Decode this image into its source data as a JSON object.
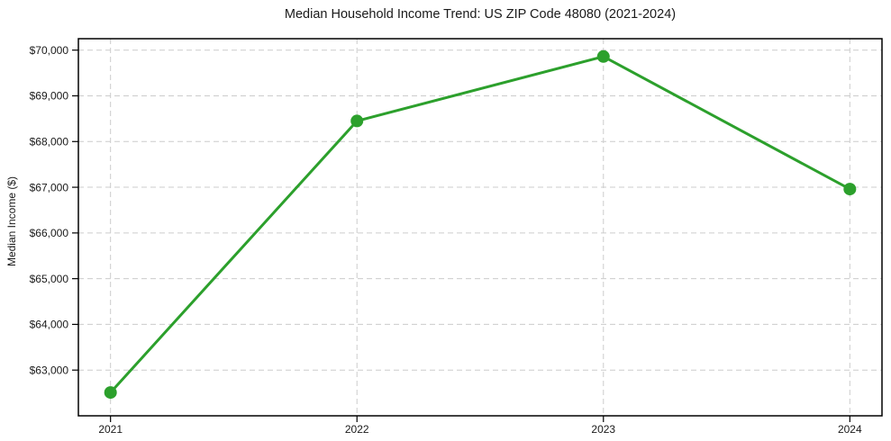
{
  "chart_data": {
    "type": "line",
    "title": "Median Household Income Trend: US ZIP Code 48080 (2021-2024)",
    "xlabel": "",
    "ylabel": "Median Income ($)",
    "categories": [
      "2021",
      "2022",
      "2023",
      "2024"
    ],
    "values": [
      62510,
      68450,
      69860,
      66960
    ],
    "ylim": [
      62000,
      70250
    ],
    "yticks": [
      63000,
      64000,
      65000,
      66000,
      67000,
      68000,
      69000,
      70000
    ],
    "ytick_prefix": "$",
    "grid": true,
    "grid_style": "dashed",
    "legend_position": "none",
    "marker": "circle",
    "line_width": 3,
    "marker_radius": 7
  },
  "colors": {
    "line": "#2ca02c",
    "grid": "#cccccc",
    "axis": "#000000",
    "text": "#1a1a1a",
    "background": "#ffffff"
  }
}
